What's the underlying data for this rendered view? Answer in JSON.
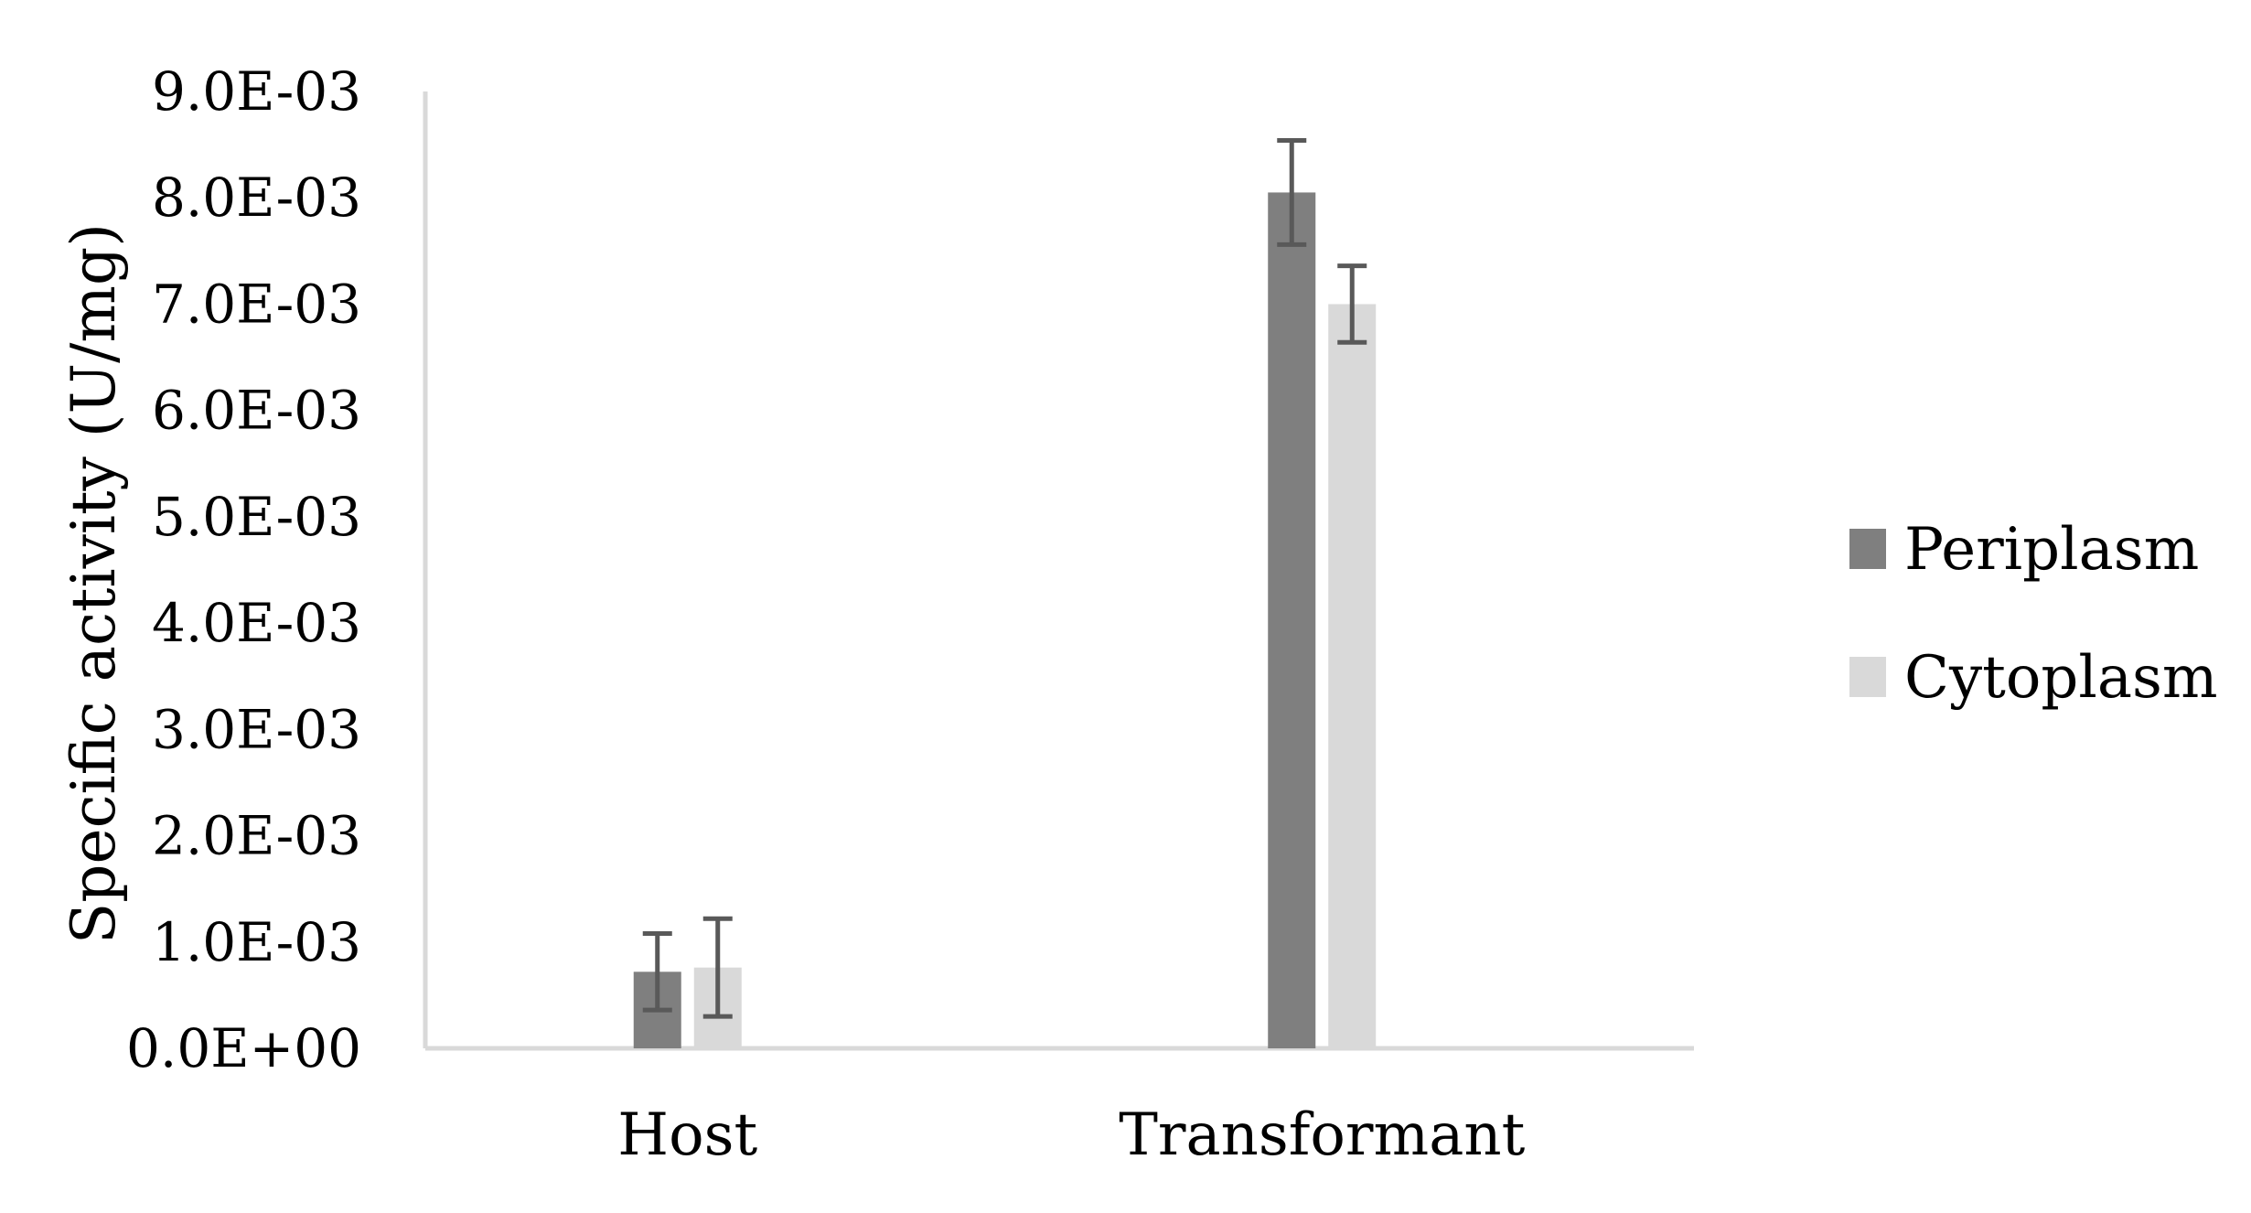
{
  "chart_data": {
    "type": "bar",
    "categories": [
      "Host",
      "Transformant"
    ],
    "series": [
      {
        "name": "Periplasm",
        "color": "#7f7f7f",
        "values": [
          0.00072,
          0.00805
        ],
        "errors": [
          0.00036,
          0.00049
        ]
      },
      {
        "name": "Cytoplasm",
        "color": "#d9d9d9",
        "values": [
          0.00076,
          0.007
        ],
        "errors": [
          0.00046,
          0.00036
        ]
      }
    ],
    "xlabel": "",
    "ylabel": "Specific activity (U/mg)",
    "ylim": [
      0,
      0.009
    ],
    "yticks": [
      {
        "value": 0.0,
        "label": "0.0E+00"
      },
      {
        "value": 0.001,
        "label": "1.0E-03"
      },
      {
        "value": 0.002,
        "label": "2.0E-03"
      },
      {
        "value": 0.003,
        "label": "3.0E-03"
      },
      {
        "value": 0.004,
        "label": "4.0E-03"
      },
      {
        "value": 0.005,
        "label": "5.0E-03"
      },
      {
        "value": 0.006,
        "label": "6.0E-03"
      },
      {
        "value": 0.007,
        "label": "7.0E-03"
      },
      {
        "value": 0.008,
        "label": "8.0E-03"
      },
      {
        "value": 0.009,
        "label": "9.0E-03"
      }
    ],
    "grid": false,
    "legend_position": "right",
    "axis_color": "#d9d9d9",
    "error_bar_color": "#595959"
  }
}
